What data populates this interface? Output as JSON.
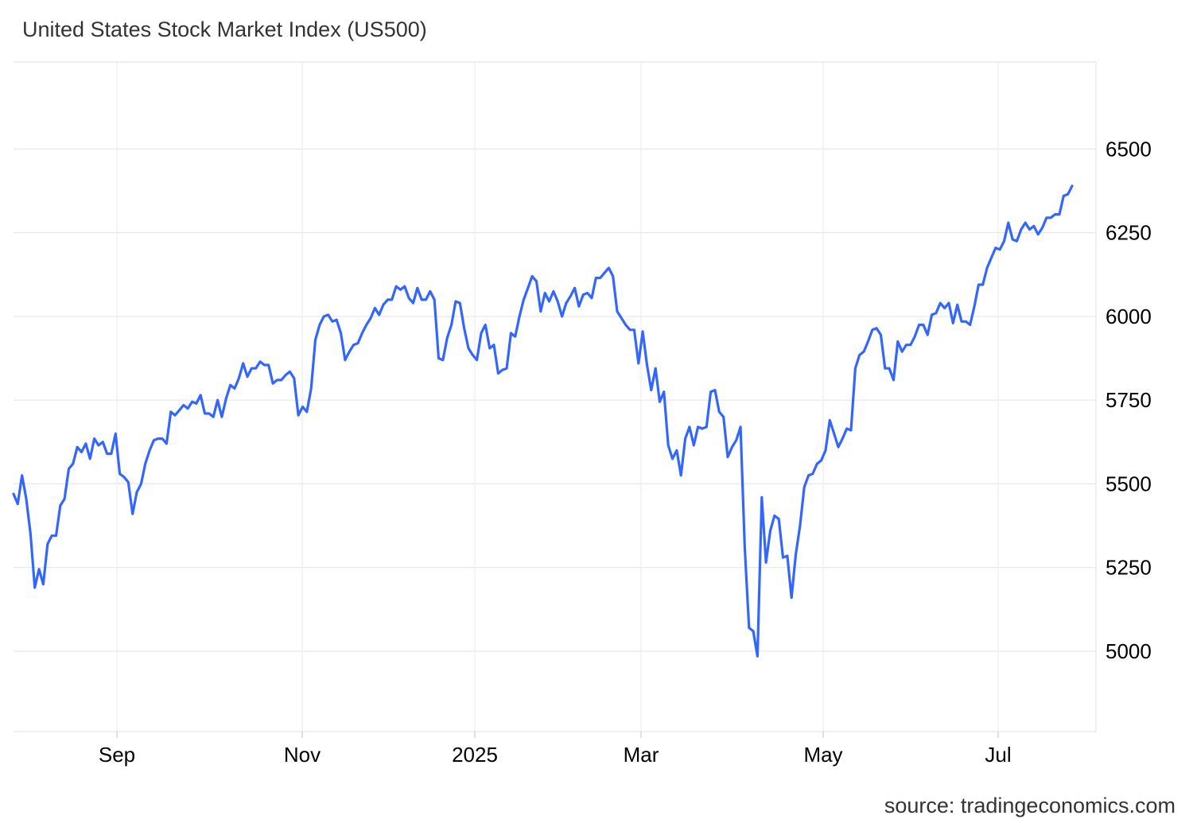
{
  "source": "source: tradingeconomics.com",
  "chart_data": {
    "type": "line",
    "title": "United States Stock Market Index (US500)",
    "xlabel": "",
    "ylabel": "",
    "ylim": [
      4760,
      6760
    ],
    "y_ticks": [
      5000,
      5250,
      5500,
      5750,
      6000,
      6250,
      6500
    ],
    "x_ticks": [
      "Sep",
      "Nov",
      "2025",
      "Mar",
      "May",
      "Jul"
    ],
    "grid": true,
    "line_color": "#3366ff",
    "series": [
      {
        "name": "",
        "values": [
          5470,
          5440,
          5525,
          5455,
          5350,
          5190,
          5245,
          5200,
          5320,
          5345,
          5345,
          5435,
          5455,
          5545,
          5560,
          5610,
          5595,
          5620,
          5575,
          5635,
          5615,
          5625,
          5590,
          5590,
          5650,
          5530,
          5520,
          5505,
          5410,
          5475,
          5500,
          5560,
          5600,
          5630,
          5635,
          5635,
          5620,
          5715,
          5705,
          5720,
          5735,
          5725,
          5745,
          5740,
          5765,
          5710,
          5710,
          5700,
          5750,
          5700,
          5755,
          5795,
          5785,
          5815,
          5860,
          5820,
          5845,
          5845,
          5865,
          5855,
          5855,
          5800,
          5810,
          5810,
          5825,
          5835,
          5815,
          5705,
          5730,
          5715,
          5785,
          5930,
          5975,
          6000,
          6005,
          5985,
          5990,
          5950,
          5870,
          5895,
          5915,
          5920,
          5950,
          5975,
          5995,
          6025,
          6005,
          6035,
          6050,
          6050,
          6090,
          6080,
          6090,
          6055,
          6040,
          6085,
          6050,
          6050,
          6075,
          6050,
          5875,
          5870,
          5935,
          5975,
          6045,
          6040,
          5965,
          5905,
          5885,
          5870,
          5950,
          5975,
          5905,
          5915,
          5830,
          5840,
          5845,
          5950,
          5940,
          6000,
          6050,
          6085,
          6120,
          6105,
          6015,
          6070,
          6045,
          6075,
          6045,
          6000,
          6040,
          6060,
          6085,
          6030,
          6065,
          6070,
          6055,
          6115,
          6115,
          6130,
          6145,
          6120,
          6015,
          5995,
          5975,
          5960,
          5960,
          5860,
          5955,
          5855,
          5780,
          5845,
          5745,
          5775,
          5615,
          5575,
          5600,
          5525,
          5635,
          5670,
          5615,
          5670,
          5665,
          5670,
          5775,
          5780,
          5715,
          5700,
          5580,
          5610,
          5630,
          5670,
          5310,
          5070,
          5060,
          4985,
          5460,
          5265,
          5360,
          5405,
          5395,
          5280,
          5285,
          5160,
          5290,
          5375,
          5490,
          5525,
          5530,
          5560,
          5570,
          5600,
          5690,
          5650,
          5610,
          5635,
          5665,
          5660,
          5845,
          5885,
          5895,
          5925,
          5960,
          5965,
          5945,
          5845,
          5845,
          5810,
          5925,
          5895,
          5915,
          5915,
          5940,
          5975,
          5975,
          5945,
          6005,
          6010,
          6040,
          6025,
          6040,
          5980,
          6035,
          5985,
          5985,
          5975,
          6030,
          6095,
          6095,
          6145,
          6175,
          6205,
          6200,
          6225,
          6280,
          6230,
          6225,
          6260,
          6280,
          6260,
          6270,
          6245,
          6265,
          6295,
          6295,
          6305,
          6305,
          6360,
          6365,
          6390
        ]
      }
    ]
  }
}
